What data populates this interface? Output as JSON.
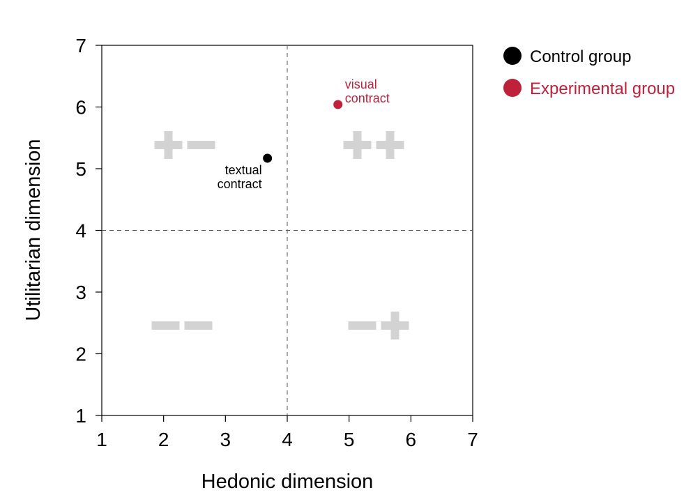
{
  "chart_data": {
    "type": "scatter",
    "title": "",
    "xlabel": "Hedonic dimension",
    "ylabel": "Utilitarian dimension",
    "xlim": [
      1,
      7
    ],
    "ylim": [
      1,
      7
    ],
    "xticks": [
      "1",
      "2",
      "3",
      "4",
      "5",
      "6",
      "7"
    ],
    "yticks": [
      "1",
      "2",
      "3",
      "4",
      "5",
      "6",
      "7"
    ],
    "reference_lines": {
      "x": 4,
      "y": 4,
      "style": "dashed"
    },
    "legend_position": "top-right, outside plot",
    "series": [
      {
        "name": "Control group",
        "color": "#000000",
        "points": [
          {
            "x": 3.68,
            "y": 5.17,
            "label": [
              "textual",
              "contract"
            ]
          }
        ]
      },
      {
        "name": "Experimental group",
        "color": "#c0213a",
        "points": [
          {
            "x": 4.82,
            "y": 6.04,
            "label": [
              "visual",
              "contract"
            ]
          }
        ]
      }
    ],
    "quadrant_markers": [
      {
        "quadrant": "top-left",
        "symbols": "+-"
      },
      {
        "quadrant": "top-right",
        "symbols": "++"
      },
      {
        "quadrant": "bottom-left",
        "symbols": "--"
      },
      {
        "quadrant": "bottom-right",
        "symbols": "-+"
      }
    ],
    "quadrant_color": "#d3d3d3",
    "grid": false
  }
}
